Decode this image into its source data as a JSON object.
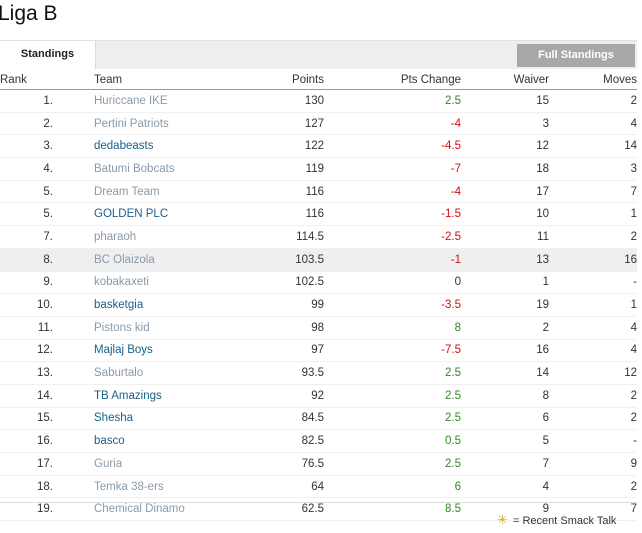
{
  "league": {
    "title": "Liga B"
  },
  "tabs": {
    "standings_label": "Standings",
    "full_standings_label": "Full Standings"
  },
  "columns": {
    "rank": "Rank",
    "team": "Team",
    "points": "Points",
    "pts_change": "Pts Change",
    "waiver": "Waiver",
    "moves": "Moves"
  },
  "rows": [
    {
      "rank": "1.",
      "team": "Huriccane IKE",
      "points": "130",
      "pts_change": "2.5",
      "waiver": "15",
      "moves": "2",
      "link": false
    },
    {
      "rank": "2.",
      "team": "Pertini Patriots",
      "points": "127",
      "pts_change": "-4",
      "waiver": "3",
      "moves": "4",
      "link": false
    },
    {
      "rank": "3.",
      "team": "dedabeasts",
      "points": "122",
      "pts_change": "-4.5",
      "waiver": "12",
      "moves": "14",
      "link": true
    },
    {
      "rank": "4.",
      "team": "Batumi Bobcats",
      "points": "119",
      "pts_change": "-7",
      "waiver": "18",
      "moves": "3",
      "link": false
    },
    {
      "rank": "5.",
      "team": "Dream Team",
      "points": "116",
      "pts_change": "-4",
      "waiver": "17",
      "moves": "7",
      "link": false
    },
    {
      "rank": "5.",
      "team": "GOLDEN PLC",
      "points": "116",
      "pts_change": "-1.5",
      "waiver": "10",
      "moves": "1",
      "link": true
    },
    {
      "rank": "7.",
      "team": "pharaoh",
      "points": "114.5",
      "pts_change": "-2.5",
      "waiver": "11",
      "moves": "2",
      "link": false
    },
    {
      "rank": "8.",
      "team": "BC Olaizola",
      "points": "103.5",
      "pts_change": "-1",
      "waiver": "13",
      "moves": "16",
      "link": false,
      "highlight": true
    },
    {
      "rank": "9.",
      "team": "kobakaxeti",
      "points": "102.5",
      "pts_change": "0",
      "waiver": "1",
      "moves": "-",
      "link": false
    },
    {
      "rank": "10.",
      "team": "basketgia",
      "points": "99",
      "pts_change": "-3.5",
      "waiver": "19",
      "moves": "1",
      "link": true
    },
    {
      "rank": "11.",
      "team": "Pistons kid",
      "points": "98",
      "pts_change": "8",
      "waiver": "2",
      "moves": "4",
      "link": false
    },
    {
      "rank": "12.",
      "team": "Majlaj Boys",
      "points": "97",
      "pts_change": "-7.5",
      "waiver": "16",
      "moves": "4",
      "link": true
    },
    {
      "rank": "13.",
      "team": "Saburtalo",
      "points": "93.5",
      "pts_change": "2.5",
      "waiver": "14",
      "moves": "12",
      "link": false
    },
    {
      "rank": "14.",
      "team": "TB Amazings",
      "points": "92",
      "pts_change": "2.5",
      "waiver": "8",
      "moves": "2",
      "link": true
    },
    {
      "rank": "15.",
      "team": "Shesha",
      "points": "84.5",
      "pts_change": "2.5",
      "waiver": "6",
      "moves": "2",
      "link": true
    },
    {
      "rank": "16.",
      "team": "basco",
      "points": "82.5",
      "pts_change": "0.5",
      "waiver": "5",
      "moves": "-",
      "link": true
    },
    {
      "rank": "17.",
      "team": "Guria",
      "points": "76.5",
      "pts_change": "2.5",
      "waiver": "7",
      "moves": "9",
      "link": false
    },
    {
      "rank": "18.",
      "team": "Temka 38-ers",
      "points": "64",
      "pts_change": "6",
      "waiver": "4",
      "moves": "2",
      "link": false
    },
    {
      "rank": "19.",
      "team": "Chemical Dinamo",
      "points": "62.5",
      "pts_change": "8.5",
      "waiver": "9",
      "moves": "7",
      "link": false
    }
  ],
  "footer": {
    "legend_icon": "smack-talk-icon",
    "legend_text": "= Recent Smack Talk"
  },
  "colors": {
    "positive": "#2e8b22",
    "negative": "#cc1111",
    "team_link": "#1a5f8a",
    "team_plain": "#8a9aa8"
  }
}
